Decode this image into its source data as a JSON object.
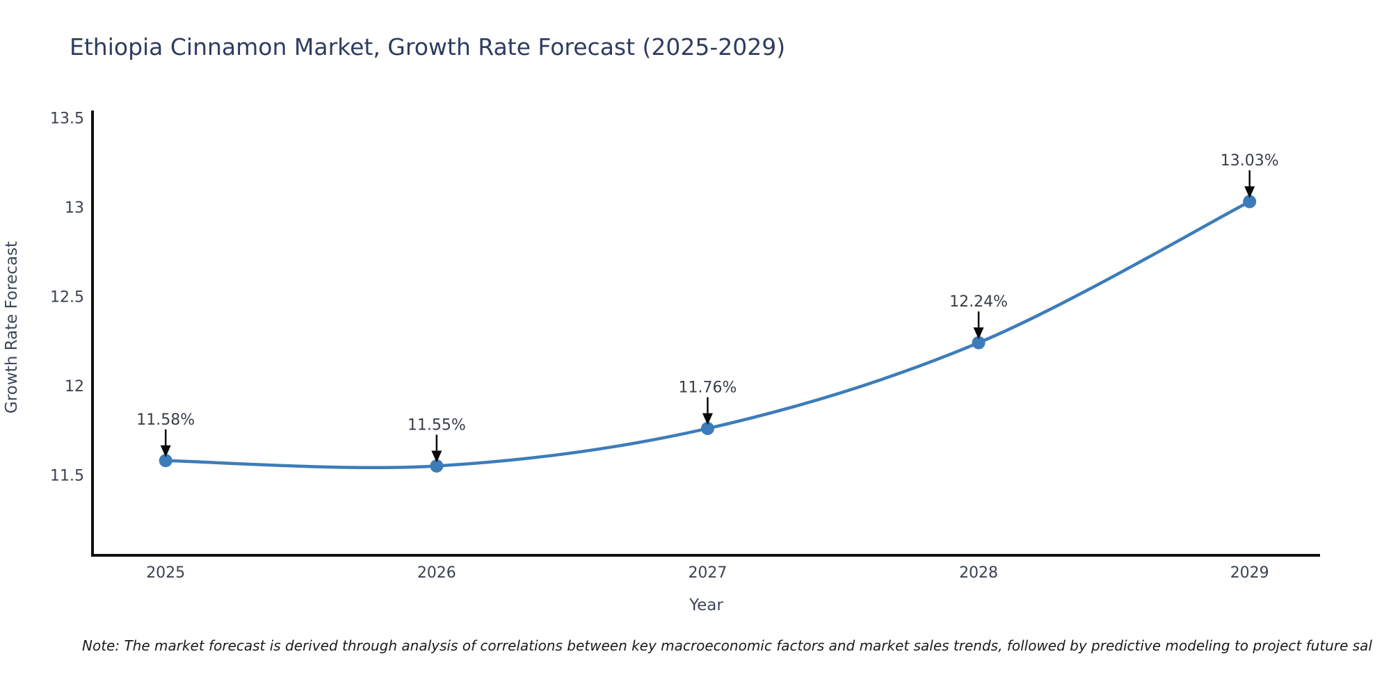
{
  "title": "Ethiopia Cinnamon Market, Growth Rate Forecast (2025-2029)",
  "footnote": "Note: The market forecast is derived through analysis of correlations between key macroeconomic factors and market sales trends, followed by predictive modeling to project future sal",
  "chart_data": {
    "type": "line",
    "title": "Ethiopia Cinnamon Market, Growth Rate Forecast (2025-2029)",
    "xlabel": "Year",
    "ylabel": "Growth Rate Forecast",
    "x": [
      2025,
      2026,
      2027,
      2028,
      2029
    ],
    "series": [
      {
        "name": "Growth Rate Forecast",
        "values": [
          11.58,
          11.55,
          11.76,
          12.24,
          13.03
        ]
      }
    ],
    "point_labels": [
      "11.58%",
      "11.55%",
      "11.76%",
      "12.24%",
      "13.03%"
    ],
    "xtick_labels": [
      "2025",
      "2026",
      "2027",
      "2028",
      "2029"
    ],
    "yticks": [
      11.5,
      12,
      12.5,
      13,
      13.5
    ],
    "ytick_labels": [
      "11.5",
      "12",
      "12.5",
      "13",
      "13.5"
    ],
    "xlim": [
      2024.73,
      2029.26
    ],
    "ylim": [
      11.05,
      13.54
    ],
    "grid": false,
    "legend": false,
    "colors": {
      "line": "#3d7cba",
      "marker": "#3d7cba",
      "spine": "#0f0f0f",
      "tick_label": "#3a424e",
      "annotation_text": "#383d46",
      "annotation_arrow": "#0a0a0a"
    }
  }
}
